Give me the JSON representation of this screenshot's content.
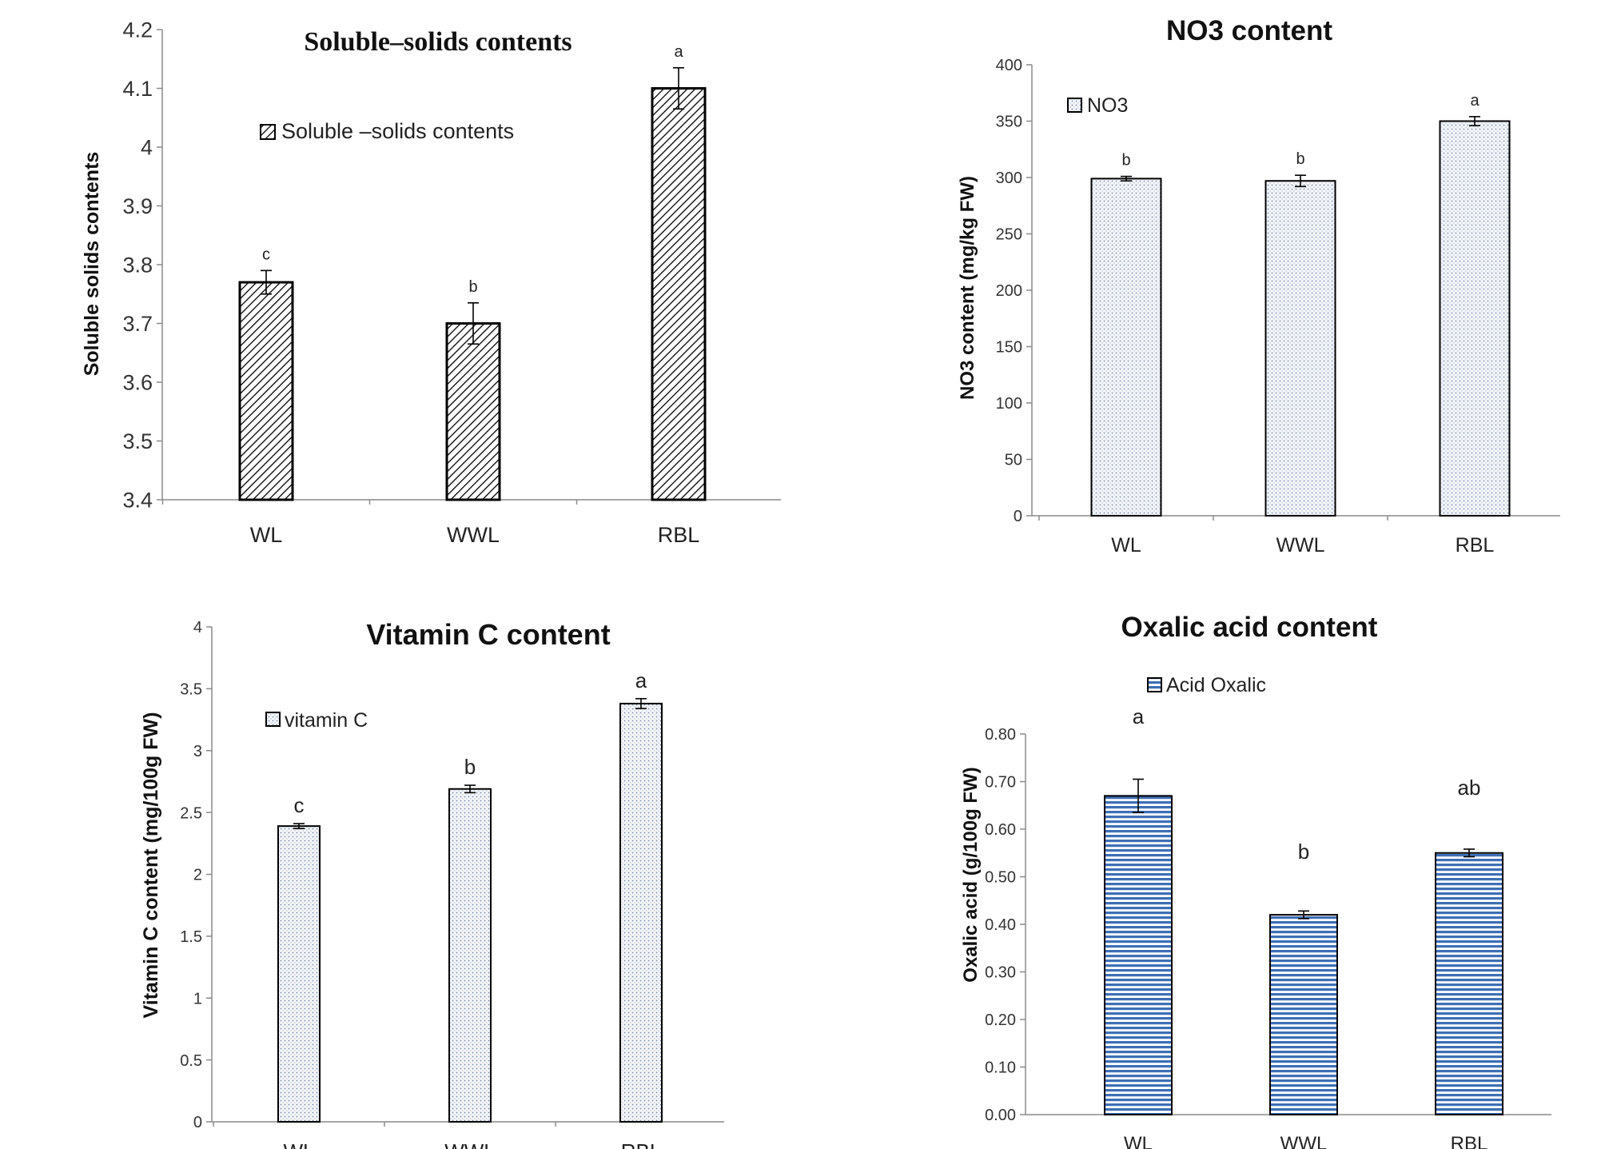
{
  "chart_data": [
    {
      "type": "bar",
      "title": "Soluble–solids contents",
      "ylabel": "Soluble solids contents",
      "xlabel": "",
      "legend": "Soluble –solids contents",
      "legend_position": "top-left",
      "categories": [
        "WL",
        "WWL",
        "RBL"
      ],
      "values": [
        3.77,
        3.7,
        4.1
      ],
      "errors": [
        0.02,
        0.035,
        0.035
      ],
      "letters": [
        "c",
        "b",
        "a"
      ],
      "ylim": [
        3.4,
        4.2
      ],
      "yticks": [
        "3.4",
        "3.5",
        "3.6",
        "3.7",
        "3.8",
        "3.9",
        "4",
        "4.1",
        "4.2"
      ],
      "fill": "diagonal-hatch"
    },
    {
      "type": "bar",
      "title": "NO3 content",
      "ylabel": "NO3 content (mg/kg FW)",
      "xlabel": "",
      "legend": "NO3",
      "legend_position": "top-left",
      "categories": [
        "WL",
        "WWL",
        "RBL"
      ],
      "values": [
        299,
        297,
        350
      ],
      "errors": [
        2,
        5,
        4
      ],
      "letters": [
        "b",
        "b",
        "a"
      ],
      "ylim": [
        0,
        400
      ],
      "yticks": [
        "0",
        "50",
        "100",
        "150",
        "200",
        "250",
        "300",
        "350",
        "400"
      ],
      "fill": "dotted"
    },
    {
      "type": "bar",
      "title": "Vitamin C content",
      "ylabel": "Vitamin C content (mg/100g FW)",
      "xlabel": "",
      "legend": "vitamin C",
      "legend_position": "top-left",
      "categories": [
        "WL",
        "WWL",
        "RBL"
      ],
      "values": [
        2.39,
        2.69,
        3.38
      ],
      "errors": [
        0.02,
        0.03,
        0.04
      ],
      "letters": [
        "c",
        "b",
        "a"
      ],
      "ylim": [
        0,
        4
      ],
      "yticks": [
        "0",
        "0.5",
        "1",
        "1.5",
        "2",
        "2.5",
        "3",
        "3.5",
        "4"
      ],
      "fill": "dotted"
    },
    {
      "type": "bar",
      "title": "Oxalic acid content",
      "ylabel": "Oxalic acid (g/100g FW)",
      "xlabel": "",
      "legend": "Acid Oxalic",
      "legend_position": "top-center",
      "categories": [
        "WL",
        "WWL",
        "RBL"
      ],
      "values": [
        0.67,
        0.42,
        0.55
      ],
      "errors": [
        0.035,
        0.008,
        0.008
      ],
      "letters": [
        "a",
        "b",
        "ab"
      ],
      "ylim": [
        0,
        0.8
      ],
      "yticks": [
        "0.00",
        "0.10",
        "0.20",
        "0.30",
        "0.40",
        "0.50",
        "0.60",
        "0.70",
        "0.80"
      ],
      "fill": "horizontal-lines"
    }
  ],
  "colors": {
    "axis": "#8a8a8a",
    "bar_outline": "#000000",
    "dot_fill": "#6f86a6",
    "stripe_blue": "#3f6fb5",
    "background": "#ffffff"
  }
}
